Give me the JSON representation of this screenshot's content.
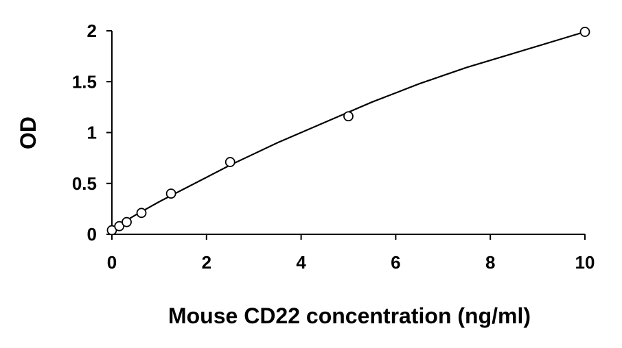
{
  "chart_data": {
    "type": "scatter",
    "title": "",
    "xlabel": "Mouse CD22 concentration (ng/ml)",
    "ylabel": "OD",
    "xlim": [
      0,
      10
    ],
    "ylim": [
      0,
      2
    ],
    "xticks": [
      0,
      2,
      4,
      6,
      8,
      10
    ],
    "yticks": [
      0,
      0.5,
      1,
      1.5,
      2
    ],
    "xtick_labels": [
      "0",
      "2",
      "4",
      "6",
      "8",
      "10"
    ],
    "ytick_labels": [
      "0",
      "0.5",
      "1",
      "1.5",
      "2"
    ],
    "grid": false,
    "legend": "none",
    "series": [
      {
        "marker": "open-circle",
        "color": "#000000",
        "x": [
          0,
          0.156,
          0.3125,
          0.625,
          1.25,
          2.5,
          5,
          10
        ],
        "y": [
          0.04,
          0.08,
          0.12,
          0.21,
          0.4,
          0.71,
          1.16,
          1.99
        ]
      }
    ],
    "fit_curve": {
      "color": "#000000",
      "x": [
        0,
        0.5,
        1,
        1.5,
        2,
        2.5,
        3,
        3.5,
        4,
        4.5,
        5,
        5.5,
        6,
        6.5,
        7,
        7.5,
        8,
        8.5,
        9,
        9.5,
        10
      ],
      "y": [
        0.05,
        0.19,
        0.32,
        0.44,
        0.56,
        0.68,
        0.79,
        0.9,
        1.0,
        1.1,
        1.2,
        1.3,
        1.39,
        1.48,
        1.56,
        1.64,
        1.71,
        1.78,
        1.85,
        1.92,
        1.99
      ]
    }
  }
}
